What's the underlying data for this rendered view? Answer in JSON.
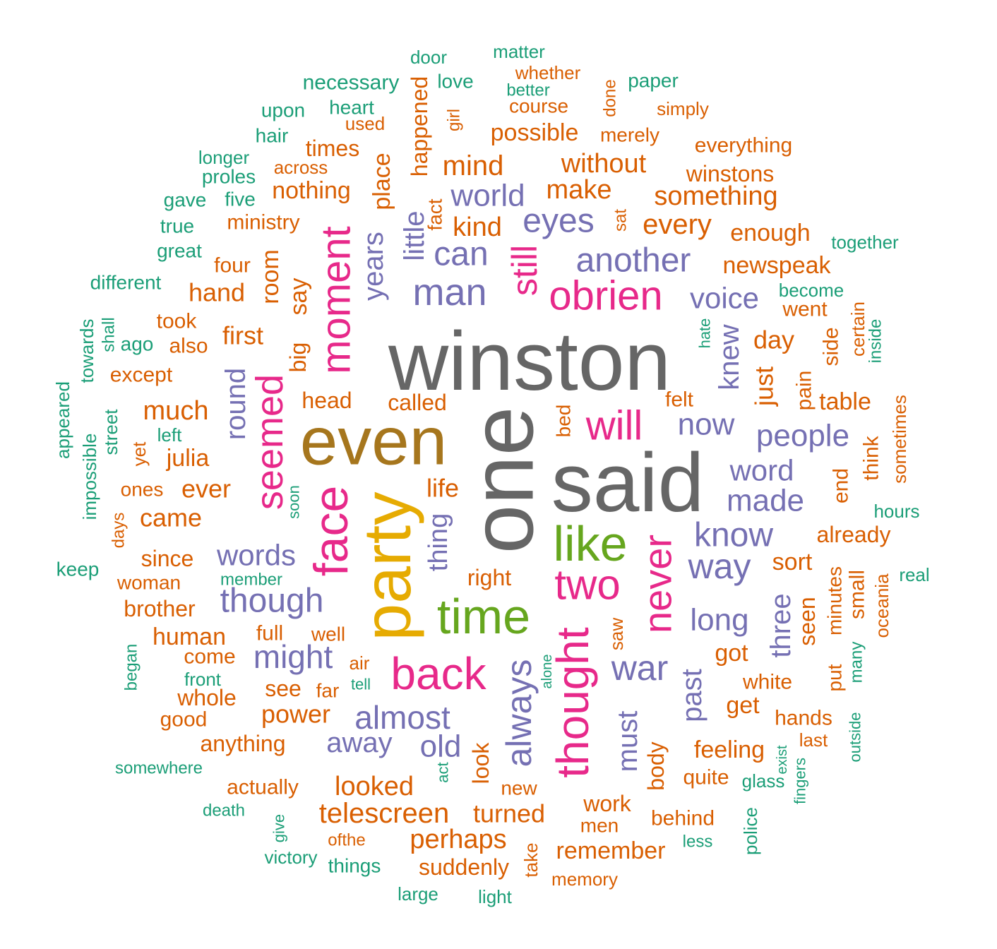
{
  "palette": {
    "gray": "#666666",
    "gold": "#A6761D",
    "yellow": "#E6AB02",
    "green": "#66A61E",
    "pink": "#E7298A",
    "purple": "#7570B3",
    "orange": "#D95F02",
    "teal": "#1B9E77"
  },
  "chart_data": {
    "type": "wordcloud",
    "words": [
      {
        "text": "winston",
        "c": "gray"
      },
      {
        "text": "one",
        "c": "gray"
      },
      {
        "text": "said",
        "c": "gray"
      },
      {
        "text": "even",
        "c": "gold"
      },
      {
        "text": "party",
        "c": "yellow"
      },
      {
        "text": "time",
        "c": "green"
      },
      {
        "text": "like",
        "c": "green"
      },
      {
        "text": "face",
        "c": "pink"
      },
      {
        "text": "moment",
        "c": "pink"
      },
      {
        "text": "seemed",
        "c": "pink"
      },
      {
        "text": "back",
        "c": "pink"
      },
      {
        "text": "thought",
        "c": "pink"
      },
      {
        "text": "two",
        "c": "pink"
      },
      {
        "text": "never",
        "c": "pink"
      },
      {
        "text": "will",
        "c": "pink"
      },
      {
        "text": "obrien",
        "c": "pink"
      },
      {
        "text": "still",
        "c": "pink"
      },
      {
        "text": "man",
        "c": "purple"
      },
      {
        "text": "can",
        "c": "purple"
      },
      {
        "text": "world",
        "c": "purple"
      },
      {
        "text": "eyes",
        "c": "purple"
      },
      {
        "text": "another",
        "c": "purple"
      },
      {
        "text": "little",
        "c": "purple"
      },
      {
        "text": "years",
        "c": "purple"
      },
      {
        "text": "voice",
        "c": "purple"
      },
      {
        "text": "knew",
        "c": "purple"
      },
      {
        "text": "now",
        "c": "purple"
      },
      {
        "text": "people",
        "c": "purple"
      },
      {
        "text": "word",
        "c": "purple"
      },
      {
        "text": "made",
        "c": "purple"
      },
      {
        "text": "know",
        "c": "purple"
      },
      {
        "text": "way",
        "c": "purple"
      },
      {
        "text": "long",
        "c": "purple"
      },
      {
        "text": "three",
        "c": "purple"
      },
      {
        "text": "war",
        "c": "purple"
      },
      {
        "text": "past",
        "c": "purple"
      },
      {
        "text": "must",
        "c": "purple"
      },
      {
        "text": "always",
        "c": "purple"
      },
      {
        "text": "almost",
        "c": "purple"
      },
      {
        "text": "old",
        "c": "purple"
      },
      {
        "text": "away",
        "c": "purple"
      },
      {
        "text": "might",
        "c": "purple"
      },
      {
        "text": "though",
        "c": "purple"
      },
      {
        "text": "words",
        "c": "purple"
      },
      {
        "text": "round",
        "c": "purple"
      },
      {
        "text": "thing",
        "c": "purple"
      },
      {
        "text": "just",
        "c": "orange"
      },
      {
        "text": "day",
        "c": "orange"
      },
      {
        "text": "went",
        "c": "orange"
      },
      {
        "text": "newspeak",
        "c": "orange"
      },
      {
        "text": "enough",
        "c": "orange"
      },
      {
        "text": "every",
        "c": "orange"
      },
      {
        "text": "something",
        "c": "orange"
      },
      {
        "text": "winstons",
        "c": "orange"
      },
      {
        "text": "everything",
        "c": "orange"
      },
      {
        "text": "make",
        "c": "orange"
      },
      {
        "text": "without",
        "c": "orange"
      },
      {
        "text": "mind",
        "c": "orange"
      },
      {
        "text": "kind",
        "c": "orange"
      },
      {
        "text": "possible",
        "c": "orange"
      },
      {
        "text": "merely",
        "c": "orange"
      },
      {
        "text": "course",
        "c": "orange"
      },
      {
        "text": "whether",
        "c": "orange"
      },
      {
        "text": "simply",
        "c": "orange"
      },
      {
        "text": "done",
        "c": "orange"
      },
      {
        "text": "girl",
        "c": "orange"
      },
      {
        "text": "happened",
        "c": "orange"
      },
      {
        "text": "fact",
        "c": "orange"
      },
      {
        "text": "sat",
        "c": "orange"
      },
      {
        "text": "place",
        "c": "orange"
      },
      {
        "text": "used",
        "c": "orange"
      },
      {
        "text": "times",
        "c": "orange"
      },
      {
        "text": "across",
        "c": "orange"
      },
      {
        "text": "nothing",
        "c": "orange"
      },
      {
        "text": "ministry",
        "c": "orange"
      },
      {
        "text": "four",
        "c": "orange"
      },
      {
        "text": "room",
        "c": "orange"
      },
      {
        "text": "hand",
        "c": "orange"
      },
      {
        "text": "say",
        "c": "orange"
      },
      {
        "text": "big",
        "c": "orange"
      },
      {
        "text": "took",
        "c": "orange"
      },
      {
        "text": "first",
        "c": "orange"
      },
      {
        "text": "also",
        "c": "orange"
      },
      {
        "text": "except",
        "c": "orange"
      },
      {
        "text": "head",
        "c": "orange"
      },
      {
        "text": "called",
        "c": "orange"
      },
      {
        "text": "much",
        "c": "orange"
      },
      {
        "text": "left",
        "c": "teal"
      },
      {
        "text": "julia",
        "c": "orange"
      },
      {
        "text": "yet",
        "c": "orange"
      },
      {
        "text": "ones",
        "c": "orange"
      },
      {
        "text": "ever",
        "c": "orange"
      },
      {
        "text": "life",
        "c": "orange"
      },
      {
        "text": "came",
        "c": "orange"
      },
      {
        "text": "days",
        "c": "orange"
      },
      {
        "text": "since",
        "c": "orange"
      },
      {
        "text": "woman",
        "c": "orange"
      },
      {
        "text": "brother",
        "c": "orange"
      },
      {
        "text": "human",
        "c": "orange"
      },
      {
        "text": "full",
        "c": "orange"
      },
      {
        "text": "well",
        "c": "orange"
      },
      {
        "text": "come",
        "c": "orange"
      },
      {
        "text": "air",
        "c": "orange"
      },
      {
        "text": "see",
        "c": "orange"
      },
      {
        "text": "far",
        "c": "orange"
      },
      {
        "text": "whole",
        "c": "orange"
      },
      {
        "text": "power",
        "c": "orange"
      },
      {
        "text": "good",
        "c": "orange"
      },
      {
        "text": "anything",
        "c": "orange"
      },
      {
        "text": "actually",
        "c": "orange"
      },
      {
        "text": "looked",
        "c": "orange"
      },
      {
        "text": "telescreen",
        "c": "orange"
      },
      {
        "text": "turned",
        "c": "orange"
      },
      {
        "text": "look",
        "c": "orange"
      },
      {
        "text": "perhaps",
        "c": "orange"
      },
      {
        "text": "ofthe",
        "c": "orange"
      },
      {
        "text": "suddenly",
        "c": "orange"
      },
      {
        "text": "take",
        "c": "orange"
      },
      {
        "text": "memory",
        "c": "orange"
      },
      {
        "text": "remember",
        "c": "orange"
      },
      {
        "text": "men",
        "c": "orange"
      },
      {
        "text": "work",
        "c": "orange"
      },
      {
        "text": "new",
        "c": "orange"
      },
      {
        "text": "behind",
        "c": "orange"
      },
      {
        "text": "quite",
        "c": "orange"
      },
      {
        "text": "body",
        "c": "orange"
      },
      {
        "text": "feeling",
        "c": "orange"
      },
      {
        "text": "get",
        "c": "orange"
      },
      {
        "text": "white",
        "c": "orange"
      },
      {
        "text": "got",
        "c": "orange"
      },
      {
        "text": "hands",
        "c": "orange"
      },
      {
        "text": "last",
        "c": "orange"
      },
      {
        "text": "seen",
        "c": "orange"
      },
      {
        "text": "put",
        "c": "orange"
      },
      {
        "text": "minutes",
        "c": "orange"
      },
      {
        "text": "small",
        "c": "orange"
      },
      {
        "text": "sort",
        "c": "orange"
      },
      {
        "text": "already",
        "c": "orange"
      },
      {
        "text": "end",
        "c": "orange"
      },
      {
        "text": "think",
        "c": "orange"
      },
      {
        "text": "sometimes",
        "c": "orange"
      },
      {
        "text": "oceania",
        "c": "orange"
      },
      {
        "text": "table",
        "c": "orange"
      },
      {
        "text": "pain",
        "c": "orange"
      },
      {
        "text": "side",
        "c": "orange"
      },
      {
        "text": "certain",
        "c": "orange"
      },
      {
        "text": "felt",
        "c": "orange"
      },
      {
        "text": "bed",
        "c": "orange"
      },
      {
        "text": "right",
        "c": "orange"
      },
      {
        "text": "saw",
        "c": "orange"
      },
      {
        "text": "door",
        "c": "teal"
      },
      {
        "text": "matter",
        "c": "teal"
      },
      {
        "text": "necessary",
        "c": "teal"
      },
      {
        "text": "love",
        "c": "teal"
      },
      {
        "text": "better",
        "c": "teal"
      },
      {
        "text": "paper",
        "c": "teal"
      },
      {
        "text": "upon",
        "c": "teal"
      },
      {
        "text": "heart",
        "c": "teal"
      },
      {
        "text": "hair",
        "c": "teal"
      },
      {
        "text": "longer",
        "c": "teal"
      },
      {
        "text": "proles",
        "c": "teal"
      },
      {
        "text": "gave",
        "c": "teal"
      },
      {
        "text": "five",
        "c": "teal"
      },
      {
        "text": "true",
        "c": "teal"
      },
      {
        "text": "great",
        "c": "teal"
      },
      {
        "text": "different",
        "c": "teal"
      },
      {
        "text": "together",
        "c": "teal"
      },
      {
        "text": "become",
        "c": "teal"
      },
      {
        "text": "hate",
        "c": "teal"
      },
      {
        "text": "inside",
        "c": "teal"
      },
      {
        "text": "towards",
        "c": "teal"
      },
      {
        "text": "shall",
        "c": "teal"
      },
      {
        "text": "ago",
        "c": "teal"
      },
      {
        "text": "appeared",
        "c": "teal"
      },
      {
        "text": "street",
        "c": "teal"
      },
      {
        "text": "impossible",
        "c": "teal"
      },
      {
        "text": "soon",
        "c": "teal"
      },
      {
        "text": "hours",
        "c": "teal"
      },
      {
        "text": "keep",
        "c": "teal"
      },
      {
        "text": "member",
        "c": "teal"
      },
      {
        "text": "real",
        "c": "teal"
      },
      {
        "text": "began",
        "c": "teal"
      },
      {
        "text": "front",
        "c": "teal"
      },
      {
        "text": "tell",
        "c": "teal"
      },
      {
        "text": "alone",
        "c": "teal"
      },
      {
        "text": "many",
        "c": "teal"
      },
      {
        "text": "outside",
        "c": "teal"
      },
      {
        "text": "exist",
        "c": "teal"
      },
      {
        "text": "glass",
        "c": "teal"
      },
      {
        "text": "fingers",
        "c": "teal"
      },
      {
        "text": "somewhere",
        "c": "teal"
      },
      {
        "text": "act",
        "c": "teal"
      },
      {
        "text": "death",
        "c": "teal"
      },
      {
        "text": "give",
        "c": "teal"
      },
      {
        "text": "victory",
        "c": "teal"
      },
      {
        "text": "things",
        "c": "teal"
      },
      {
        "text": "large",
        "c": "teal"
      },
      {
        "text": "light",
        "c": "teal"
      },
      {
        "text": "less",
        "c": "teal"
      },
      {
        "text": "police",
        "c": "teal"
      }
    ]
  }
}
